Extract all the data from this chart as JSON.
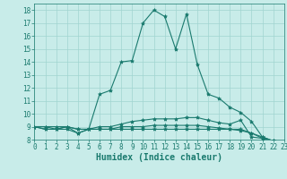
{
  "title": "",
  "xlabel": "Humidex (Indice chaleur)",
  "background_color": "#c8ece9",
  "grid_color": "#a0d4d0",
  "line_color": "#1a7a6e",
  "x_values": [
    0,
    1,
    2,
    3,
    4,
    5,
    6,
    7,
    8,
    9,
    10,
    11,
    12,
    13,
    14,
    15,
    16,
    17,
    18,
    19,
    20,
    21,
    22,
    23
  ],
  "series": [
    [
      9.0,
      9.0,
      8.8,
      9.0,
      8.5,
      8.8,
      11.5,
      11.8,
      14.0,
      14.1,
      17.0,
      18.0,
      17.5,
      15.0,
      17.7,
      13.8,
      11.5,
      11.2,
      10.5,
      10.1,
      9.4,
      8.2,
      7.9,
      7.8
    ],
    [
      9.0,
      8.8,
      8.8,
      9.0,
      8.8,
      8.8,
      9.0,
      9.0,
      9.2,
      9.4,
      9.5,
      9.6,
      9.6,
      9.6,
      9.7,
      9.7,
      9.5,
      9.3,
      9.2,
      9.5,
      8.2,
      8.1,
      7.9,
      7.8
    ],
    [
      9.0,
      8.8,
      8.8,
      8.8,
      8.5,
      8.8,
      8.8,
      8.8,
      9.0,
      9.0,
      9.0,
      9.1,
      9.1,
      9.1,
      9.1,
      9.1,
      9.0,
      8.9,
      8.8,
      8.7,
      8.5,
      8.1,
      7.9,
      7.8
    ],
    [
      9.0,
      9.0,
      9.0,
      9.0,
      8.8,
      8.8,
      8.8,
      8.8,
      8.8,
      8.8,
      8.8,
      8.8,
      8.8,
      8.8,
      8.8,
      8.8,
      8.8,
      8.8,
      8.8,
      8.8,
      8.5,
      8.2,
      7.9,
      7.8
    ]
  ],
  "ylim": [
    8,
    18.5
  ],
  "xlim": [
    0,
    23
  ],
  "yticks": [
    8,
    9,
    10,
    11,
    12,
    13,
    14,
    15,
    16,
    17,
    18
  ],
  "xticks": [
    0,
    1,
    2,
    3,
    4,
    5,
    6,
    7,
    8,
    9,
    10,
    11,
    12,
    13,
    14,
    15,
    16,
    17,
    18,
    19,
    20,
    21,
    22,
    23
  ],
  "tick_fontsize": 5.5,
  "xlabel_fontsize": 7,
  "marker": "*",
  "marker_size": 3,
  "line_width": 0.8
}
